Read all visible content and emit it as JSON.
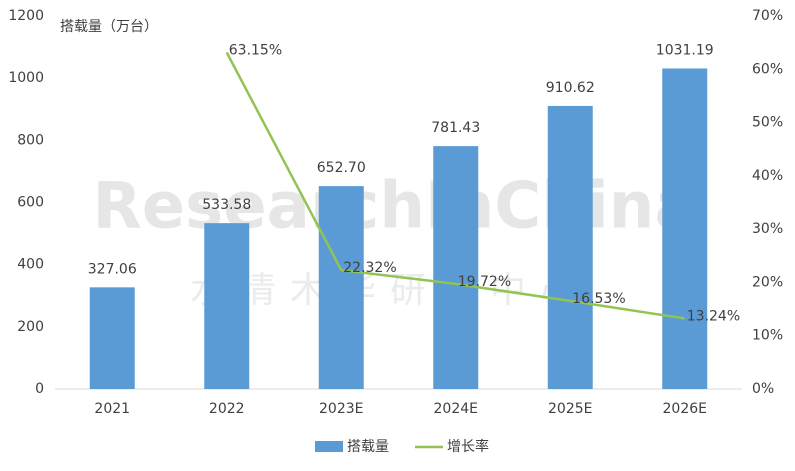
{
  "chart_data": {
    "type": "bar",
    "y_label": "搭载量（万台）",
    "watermark": "ResearchInChina",
    "watermark_sub": "水清木华研究中心",
    "categories": [
      "2021",
      "2022",
      "2023E",
      "2024E",
      "2025E",
      "2026E"
    ],
    "series": [
      {
        "name": "搭载量",
        "type": "bar",
        "color": "#5b9bd5",
        "values": [
          327.06,
          533.58,
          652.7,
          781.43,
          910.62,
          1031.19
        ],
        "value_labels": [
          "327.06",
          "533.58",
          "652.70",
          "781.43",
          "910.62",
          "1031.19"
        ]
      },
      {
        "name": "增长率",
        "type": "line",
        "axis": "y2",
        "color": "#92c353",
        "values": [
          null,
          63.15,
          22.32,
          19.72,
          16.53,
          13.24
        ],
        "value_labels": [
          null,
          "63.15%",
          "22.32%",
          "19.72%",
          "16.53%",
          "13.24%"
        ]
      }
    ],
    "ylim": [
      0,
      1200
    ],
    "yticks": [
      0,
      200,
      400,
      600,
      800,
      1000,
      1200
    ],
    "y2lim": [
      0,
      70
    ],
    "y2ticks": [
      {
        "value": 0,
        "label": "0%"
      },
      {
        "value": 10,
        "label": "10%"
      },
      {
        "value": 20,
        "label": "20%"
      },
      {
        "value": 30,
        "label": "30%"
      },
      {
        "value": 40,
        "label": "40%"
      },
      {
        "value": 50,
        "label": "50%"
      },
      {
        "value": 60,
        "label": "60%"
      },
      {
        "value": 70,
        "label": "70%"
      }
    ],
    "legend": "bottom"
  }
}
